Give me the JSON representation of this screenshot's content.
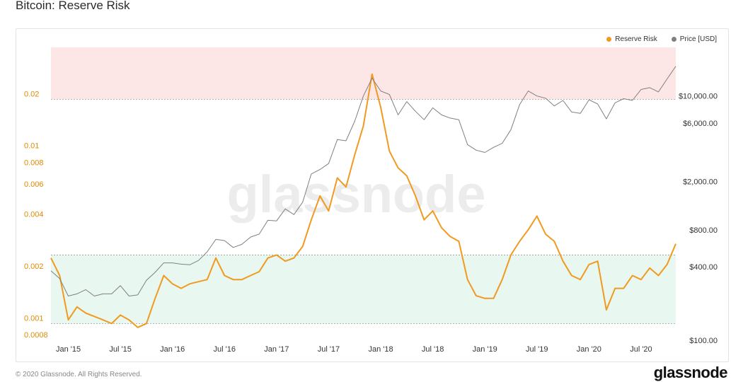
{
  "page": {
    "title": "Bitcoin: Reserve Risk"
  },
  "watermark": "glassnode",
  "footer": {
    "copyright": "© 2020 Glassnode. All Rights Reserved.",
    "brand": "glassnode"
  },
  "colors": {
    "reserve_risk": "#f09a20",
    "price": "#808080",
    "danger_band": "#fde6e6",
    "safe_band": "#e8f7ef"
  },
  "chart_data": {
    "type": "line",
    "title": "Bitcoin: Reserve Risk",
    "legend_position": "top-right",
    "legend": [
      "Reserve Risk",
      "Price [USD]"
    ],
    "x_tick_labels": [
      "Jan '15",
      "Jul '15",
      "Jan '16",
      "Jul '16",
      "Jan '17",
      "Jul '17",
      "Jan '18",
      "Jul '18",
      "Jan '19",
      "Jul '19",
      "Jan '20",
      "Jul '20"
    ],
    "xlim": [
      "2014-11",
      "2020-11"
    ],
    "y_left": {
      "scale": "log",
      "ylim": [
        0.0008,
        0.04
      ],
      "tick_labels": [
        "0.02",
        "0.01",
        "0.008",
        "0.006",
        "0.004",
        "0.002",
        "0.001",
        "0.0008"
      ],
      "tick_values": [
        0.02,
        0.01,
        0.008,
        0.006,
        0.004,
        0.002,
        0.001,
        0.0008
      ]
    },
    "y_right": {
      "scale": "log",
      "ylim": [
        100,
        25000
      ],
      "tick_labels": [
        "$10,000.00",
        "$6,000.00",
        "$2,000.00",
        "$800.00",
        "$400.00",
        "$100.00"
      ],
      "tick_values": [
        10000,
        6000,
        2000,
        800,
        400,
        100
      ]
    },
    "bands": [
      {
        "name": "danger",
        "from": 0.02,
        "to": 0.04
      },
      {
        "name": "safe",
        "from": 0.001,
        "to": 0.0025
      }
    ],
    "series": [
      {
        "name": "Reserve Risk",
        "axis": "left",
        "color": "#f09a20",
        "x": [
          "2014-11",
          "2014-12",
          "2015-01",
          "2015-02",
          "2015-03",
          "2015-04",
          "2015-05",
          "2015-06",
          "2015-07",
          "2015-08",
          "2015-09",
          "2015-10",
          "2015-11",
          "2015-12",
          "2016-01",
          "2016-02",
          "2016-03",
          "2016-04",
          "2016-05",
          "2016-06",
          "2016-07",
          "2016-08",
          "2016-09",
          "2016-10",
          "2016-11",
          "2016-12",
          "2017-01",
          "2017-02",
          "2017-03",
          "2017-04",
          "2017-05",
          "2017-06",
          "2017-07",
          "2017-08",
          "2017-09",
          "2017-10",
          "2017-11",
          "2017-12",
          "2018-01",
          "2018-02",
          "2018-03",
          "2018-04",
          "2018-05",
          "2018-06",
          "2018-07",
          "2018-08",
          "2018-09",
          "2018-10",
          "2018-11",
          "2018-12",
          "2019-01",
          "2019-02",
          "2019-03",
          "2019-04",
          "2019-05",
          "2019-06",
          "2019-07",
          "2019-08",
          "2019-09",
          "2019-10",
          "2019-11",
          "2019-12",
          "2020-01",
          "2020-02",
          "2020-03",
          "2020-04",
          "2020-05",
          "2020-06",
          "2020-07",
          "2020-08",
          "2020-09",
          "2020-10",
          "2020-11"
        ],
        "values": [
          0.0024,
          0.0019,
          0.00105,
          0.00125,
          0.00115,
          0.0011,
          0.00105,
          0.001,
          0.00112,
          0.00105,
          0.00095,
          0.001,
          0.0014,
          0.0019,
          0.0017,
          0.0016,
          0.0017,
          0.00175,
          0.0018,
          0.0024,
          0.0019,
          0.0018,
          0.0018,
          0.0019,
          0.002,
          0.0024,
          0.0025,
          0.0023,
          0.0024,
          0.0028,
          0.004,
          0.0055,
          0.0045,
          0.007,
          0.0062,
          0.0095,
          0.014,
          0.028,
          0.018,
          0.01,
          0.008,
          0.0072,
          0.0055,
          0.004,
          0.0045,
          0.0036,
          0.0032,
          0.003,
          0.0018,
          0.00145,
          0.0014,
          0.0014,
          0.0018,
          0.0025,
          0.003,
          0.0035,
          0.0042,
          0.0033,
          0.003,
          0.0023,
          0.0019,
          0.0018,
          0.0022,
          0.0023,
          0.0012,
          0.0016,
          0.0016,
          0.0019,
          0.0018,
          0.0021,
          0.0019,
          0.0022,
          0.0029
        ]
      },
      {
        "name": "Price [USD]",
        "axis": "right",
        "color": "#808080",
        "x": [
          "2014-11",
          "2014-12",
          "2015-01",
          "2015-02",
          "2015-03",
          "2015-04",
          "2015-05",
          "2015-06",
          "2015-07",
          "2015-08",
          "2015-09",
          "2015-10",
          "2015-11",
          "2015-12",
          "2016-01",
          "2016-02",
          "2016-03",
          "2016-04",
          "2016-05",
          "2016-06",
          "2016-07",
          "2016-08",
          "2016-09",
          "2016-10",
          "2016-11",
          "2016-12",
          "2017-01",
          "2017-02",
          "2017-03",
          "2017-04",
          "2017-05",
          "2017-06",
          "2017-07",
          "2017-08",
          "2017-09",
          "2017-10",
          "2017-11",
          "2017-12",
          "2018-01",
          "2018-02",
          "2018-03",
          "2018-04",
          "2018-05",
          "2018-06",
          "2018-07",
          "2018-08",
          "2018-09",
          "2018-10",
          "2018-11",
          "2018-12",
          "2019-01",
          "2019-02",
          "2019-03",
          "2019-04",
          "2019-05",
          "2019-06",
          "2019-07",
          "2019-08",
          "2019-09",
          "2019-10",
          "2019-11",
          "2019-12",
          "2020-01",
          "2020-02",
          "2020-03",
          "2020-04",
          "2020-05",
          "2020-06",
          "2020-07",
          "2020-08",
          "2020-09",
          "2020-10",
          "2020-11"
        ],
        "values": [
          370,
          320,
          230,
          240,
          260,
          230,
          240,
          240,
          280,
          230,
          235,
          310,
          360,
          430,
          430,
          420,
          415,
          450,
          530,
          670,
          655,
          575,
          610,
          700,
          740,
          960,
          950,
          1190,
          1070,
          1350,
          2300,
          2500,
          2800,
          4400,
          4300,
          6200,
          10000,
          14000,
          11000,
          10300,
          7000,
          9000,
          7500,
          6400,
          8000,
          7000,
          6600,
          6400,
          4000,
          3600,
          3450,
          3800,
          4100,
          5300,
          8500,
          11000,
          10000,
          9600,
          8300,
          9200,
          7400,
          7200,
          9300,
          8600,
          6500,
          8800,
          9500,
          9200,
          11300,
          11700,
          10800,
          13800,
          17500
        ]
      }
    ]
  }
}
